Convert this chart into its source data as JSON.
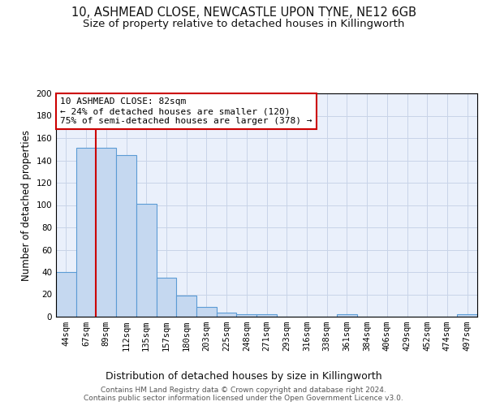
{
  "title1": "10, ASHMEAD CLOSE, NEWCASTLE UPON TYNE, NE12 6GB",
  "title2": "Size of property relative to detached houses in Killingworth",
  "xlabel": "Distribution of detached houses by size in Killingworth",
  "ylabel": "Number of detached properties",
  "categories": [
    "44sqm",
    "67sqm",
    "89sqm",
    "112sqm",
    "135sqm",
    "157sqm",
    "180sqm",
    "203sqm",
    "225sqm",
    "248sqm",
    "271sqm",
    "293sqm",
    "316sqm",
    "338sqm",
    "361sqm",
    "384sqm",
    "406sqm",
    "429sqm",
    "452sqm",
    "474sqm",
    "497sqm"
  ],
  "values": [
    40,
    151,
    151,
    145,
    101,
    35,
    19,
    9,
    4,
    2,
    2,
    0,
    0,
    0,
    2,
    0,
    0,
    0,
    0,
    0,
    2
  ],
  "bar_color": "#c5d8f0",
  "bar_edge_color": "#5b9bd5",
  "highlight_line_color": "#cc0000",
  "annotation_line1": "10 ASHMEAD CLOSE: 82sqm",
  "annotation_line2": "← 24% of detached houses are smaller (120)",
  "annotation_line3": "75% of semi-detached houses are larger (378) →",
  "annotation_box_color": "#ffffff",
  "annotation_box_edge": "#cc0000",
  "ylim": [
    0,
    200
  ],
  "yticks": [
    0,
    20,
    40,
    60,
    80,
    100,
    120,
    140,
    160,
    180,
    200
  ],
  "grid_color": "#c8d4e8",
  "bg_color": "#eaf0fb",
  "footer_text": "Contains HM Land Registry data © Crown copyright and database right 2024.\nContains public sector information licensed under the Open Government Licence v3.0.",
  "title1_fontsize": 10.5,
  "title2_fontsize": 9.5,
  "xlabel_fontsize": 9,
  "ylabel_fontsize": 8.5,
  "tick_fontsize": 7.5,
  "annotation_fontsize": 8,
  "footer_fontsize": 6.5
}
